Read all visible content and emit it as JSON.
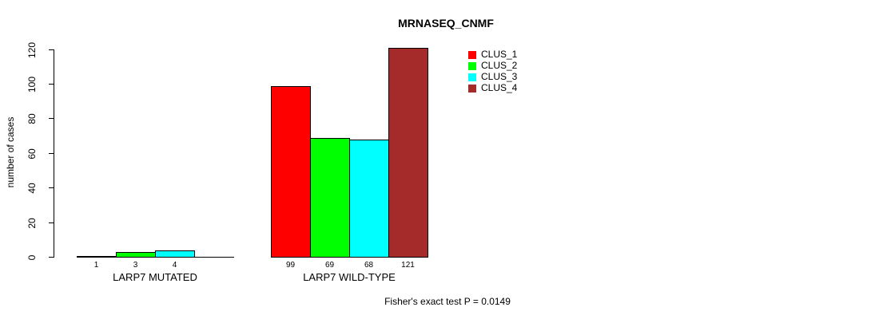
{
  "chart_data": {
    "type": "bar",
    "title": "MRNASEQ_CNMF",
    "xlabel": "",
    "ylabel": "number of cases",
    "ylim": [
      0,
      120
    ],
    "yticks": [
      0,
      20,
      40,
      60,
      80,
      100,
      120
    ],
    "grid": false,
    "legend_position": "top-right",
    "categories": [
      "LARP7 MUTATED",
      "LARP7 WILD-TYPE"
    ],
    "series": [
      {
        "name": "CLUS_1",
        "color": "#FF0000",
        "values": [
          1,
          99
        ]
      },
      {
        "name": "CLUS_2",
        "color": "#00FF00",
        "values": [
          3,
          69
        ]
      },
      {
        "name": "CLUS_3",
        "color": "#00FFFF",
        "values": [
          4,
          68
        ]
      },
      {
        "name": "CLUS_4",
        "color": "#A52A2A",
        "values": [
          0,
          121
        ]
      }
    ],
    "bar_value_labels": [
      [
        "1",
        "3",
        "4",
        ""
      ],
      [
        "99",
        "69",
        "68",
        "121"
      ]
    ],
    "annotation": "Fisher's exact test P = 0.0149"
  }
}
